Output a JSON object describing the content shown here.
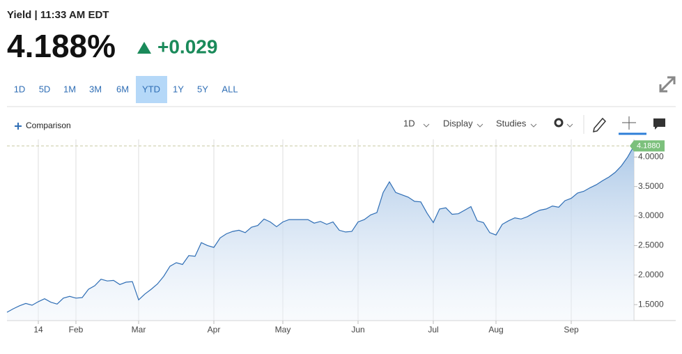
{
  "header": {
    "title": "Yield | 11:33 AM EDT",
    "price": "4.188%",
    "change": "+0.029"
  },
  "ranges": {
    "items": [
      "1D",
      "5D",
      "1M",
      "3M",
      "6M",
      "YTD",
      "1Y",
      "5Y",
      "ALL"
    ],
    "selected": "YTD"
  },
  "toolbar": {
    "comparison": "Comparison",
    "interval": "1D",
    "display": "Display",
    "studies": "Studies"
  },
  "chart_data": {
    "type": "area",
    "categories": [
      null,
      null,
      null,
      null,
      null,
      "14",
      null,
      null,
      null,
      null,
      null,
      "Feb",
      null,
      null,
      null,
      null,
      null,
      null,
      null,
      null,
      null,
      "Mar",
      null,
      null,
      null,
      null,
      null,
      null,
      null,
      null,
      null,
      null,
      null,
      "Apr",
      null,
      null,
      null,
      null,
      null,
      null,
      null,
      null,
      null,
      null,
      "May",
      null,
      null,
      null,
      null,
      null,
      null,
      null,
      null,
      null,
      null,
      null,
      "Jun",
      null,
      null,
      null,
      null,
      null,
      null,
      null,
      null,
      null,
      null,
      null,
      "Jul",
      null,
      null,
      null,
      null,
      null,
      null,
      null,
      null,
      null,
      "Aug",
      null,
      null,
      null,
      null,
      null,
      null,
      null,
      null,
      null,
      null,
      null,
      "Sep",
      null,
      null,
      null,
      null,
      null,
      null,
      null,
      null,
      null,
      null
    ],
    "values": [
      1.37,
      1.43,
      1.48,
      1.52,
      1.49,
      1.55,
      1.6,
      1.54,
      1.51,
      1.61,
      1.64,
      1.61,
      1.62,
      1.76,
      1.82,
      1.93,
      1.9,
      1.91,
      1.84,
      1.88,
      1.89,
      1.58,
      1.68,
      1.76,
      1.85,
      1.98,
      2.15,
      2.21,
      2.18,
      2.33,
      2.32,
      2.55,
      2.5,
      2.47,
      2.63,
      2.7,
      2.74,
      2.76,
      2.72,
      2.81,
      2.84,
      2.95,
      2.9,
      2.82,
      2.9,
      2.94,
      2.94,
      2.94,
      2.94,
      2.88,
      2.91,
      2.86,
      2.9,
      2.76,
      2.73,
      2.74,
      2.9,
      2.94,
      3.02,
      3.06,
      3.4,
      3.58,
      3.4,
      3.36,
      3.32,
      3.25,
      3.24,
      3.05,
      2.89,
      3.12,
      3.14,
      3.03,
      3.04,
      3.1,
      3.16,
      2.92,
      2.89,
      2.72,
      2.68,
      2.86,
      2.92,
      2.97,
      2.95,
      2.99,
      3.05,
      3.1,
      3.12,
      3.17,
      3.15,
      3.26,
      3.3,
      3.39,
      3.42,
      3.48,
      3.53,
      3.6,
      3.66,
      3.74,
      3.85,
      4.0,
      4.188
    ],
    "color": "#2f6eb5",
    "ylim": [
      1.23,
      4.24
    ],
    "yticks": [
      {
        "value": 1.5,
        "label": "1.5000"
      },
      {
        "value": 2.0,
        "label": "2.0000"
      },
      {
        "value": 2.5,
        "label": "2.5000"
      },
      {
        "value": 3.0,
        "label": "3.0000"
      },
      {
        "value": 3.5,
        "label": "3.5000"
      },
      {
        "value": 4.0,
        "label": "4.0000"
      }
    ],
    "annotations": [
      {
        "value": 4.188,
        "label": "4.1880"
      }
    ],
    "grid": true
  }
}
